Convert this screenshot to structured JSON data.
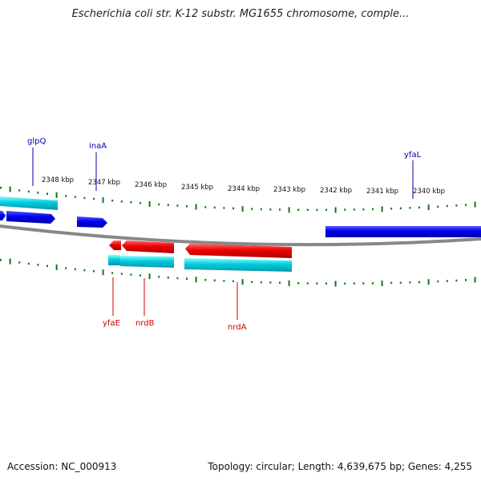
{
  "title": "Escherichia coli str. K-12 substr. MG1655 chromosome, comple...",
  "footer": {
    "accession": "Accession: NC_000913",
    "summary": "Topology: circular; Length: 4,639,675 bp; Genes: 4,255"
  },
  "ruler": {
    "labels": [
      "2348 kbp",
      "2347 kbp",
      "2346 kbp",
      "2345 kbp",
      "2344 kbp",
      "2343 kbp",
      "2342 kbp",
      "2341 kbp",
      "2340 kbp"
    ]
  },
  "genes": {
    "top": [
      "glpQ",
      "inaA",
      "yfaL"
    ],
    "bottom": [
      "yfaE",
      "nrdB",
      "nrdA"
    ]
  },
  "colors": {
    "forward_gene": "#0000ee",
    "reverse_gene": "#ee0000",
    "cds": "#00ccdd",
    "tick": "#117711",
    "backbone": "#888888",
    "top_label": "#0000aa",
    "bottom_label": "#cc0000"
  }
}
